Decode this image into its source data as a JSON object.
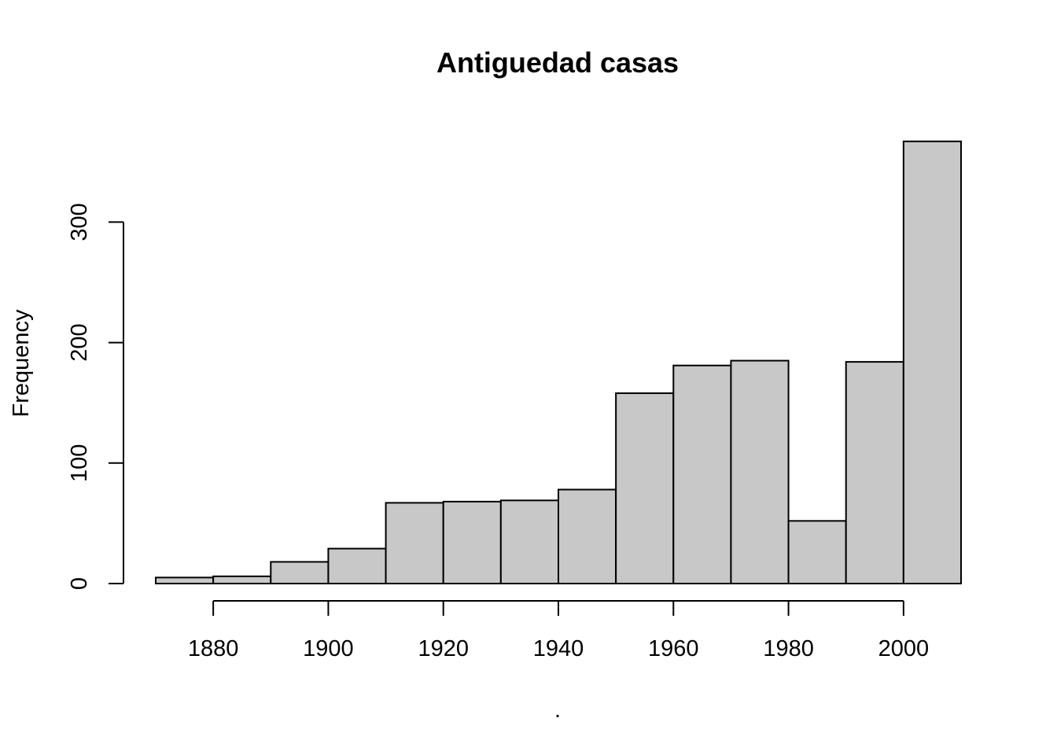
{
  "chart_data": {
    "type": "bar",
    "title": "Antiguedad casas",
    "xlabel": ".",
    "ylabel": "Frequency",
    "bins": [
      {
        "start": 1870,
        "end": 1880,
        "count": 5
      },
      {
        "start": 1880,
        "end": 1890,
        "count": 6
      },
      {
        "start": 1890,
        "end": 1900,
        "count": 18
      },
      {
        "start": 1900,
        "end": 1910,
        "count": 29
      },
      {
        "start": 1910,
        "end": 1920,
        "count": 67
      },
      {
        "start": 1920,
        "end": 1930,
        "count": 68
      },
      {
        "start": 1930,
        "end": 1940,
        "count": 69
      },
      {
        "start": 1940,
        "end": 1950,
        "count": 78
      },
      {
        "start": 1950,
        "end": 1960,
        "count": 158
      },
      {
        "start": 1960,
        "end": 1970,
        "count": 181
      },
      {
        "start": 1970,
        "end": 1980,
        "count": 185
      },
      {
        "start": 1980,
        "end": 1990,
        "count": 52
      },
      {
        "start": 1990,
        "end": 2000,
        "count": 184
      },
      {
        "start": 2000,
        "end": 2010,
        "count": 367
      }
    ],
    "xticks": [
      "1880",
      "1900",
      "1920",
      "1940",
      "1960",
      "1980",
      "2000"
    ],
    "yticks": [
      "0",
      "100",
      "200",
      "300"
    ],
    "xlim": [
      1870,
      2010
    ],
    "ylim": [
      0,
      367
    ],
    "grid": false
  }
}
